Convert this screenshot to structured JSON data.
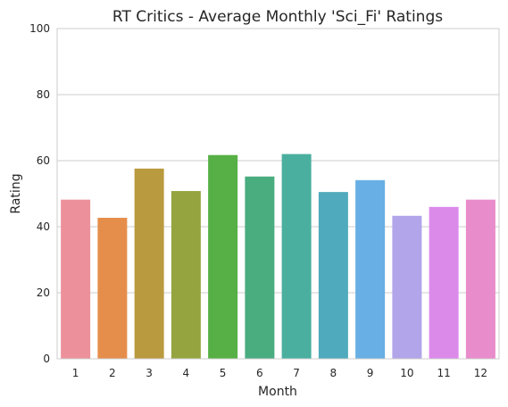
{
  "chart_data": {
    "type": "bar",
    "title": "RT Critics - Average Monthly 'Sci_Fi' Ratings",
    "xlabel": "Month",
    "ylabel": "Rating",
    "categories": [
      "1",
      "2",
      "3",
      "4",
      "5",
      "6",
      "7",
      "8",
      "9",
      "10",
      "11",
      "12"
    ],
    "values": [
      48.2,
      42.7,
      57.6,
      50.8,
      61.7,
      55.2,
      62.0,
      50.5,
      54.1,
      43.3,
      46.0,
      48.2
    ],
    "colors": [
      "#ec919b",
      "#e58e4c",
      "#ba9a3f",
      "#96a43f",
      "#56b045",
      "#49ad80",
      "#4aaf9f",
      "#4eaabc",
      "#67afe4",
      "#b2a5ea",
      "#dc8aea",
      "#e98ccb"
    ],
    "ylim": [
      0,
      100
    ],
    "yticks": [
      0,
      20,
      40,
      60,
      80,
      100
    ],
    "grid": "horizontal",
    "legend": "none"
  }
}
